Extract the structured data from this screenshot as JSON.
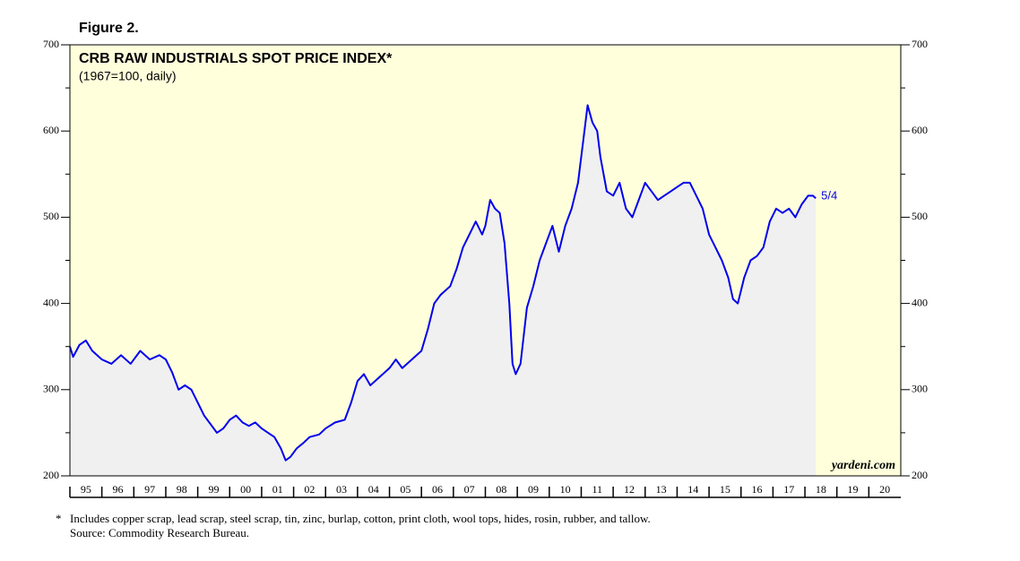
{
  "chart_data": {
    "type": "area-line",
    "figure_label": "Figure 2.",
    "title": "CRB RAW INDUSTRIALS SPOT PRICE INDEX*",
    "subtitle": "(1967=100, daily)",
    "end_label": "5/4",
    "watermark": "yardeni.com",
    "footnote": "Includes copper scrap, lead scrap, steel scrap, tin, zinc, burlap, cotton, print cloth, wool tops, hides, rosin, rubber, and tallow.",
    "footnote_marker": "*",
    "source": "Source: Commodity Research Bureau.",
    "color": "#0000ee",
    "area_color": "#f0f0f0",
    "plot_background": "#ffffdc",
    "x": [
      1995.0,
      1995.1,
      1995.3,
      1995.5,
      1995.7,
      1996.0,
      1996.3,
      1996.6,
      1996.9,
      1997.2,
      1997.5,
      1997.8,
      1998.0,
      1998.2,
      1998.4,
      1998.6,
      1998.8,
      1999.0,
      1999.2,
      1999.4,
      1999.6,
      1999.8,
      2000.0,
      2000.2,
      2000.4,
      2000.6,
      2000.8,
      2001.0,
      2001.2,
      2001.4,
      2001.6,
      2001.75,
      2001.9,
      2002.1,
      2002.3,
      2002.5,
      2002.8,
      2003.0,
      2003.3,
      2003.6,
      2003.8,
      2004.0,
      2004.2,
      2004.4,
      2004.7,
      2005.0,
      2005.2,
      2005.4,
      2005.7,
      2006.0,
      2006.2,
      2006.4,
      2006.6,
      2006.9,
      2007.1,
      2007.3,
      2007.5,
      2007.7,
      2007.9,
      2008.0,
      2008.15,
      2008.3,
      2008.45,
      2008.6,
      2008.75,
      2008.85,
      2008.95,
      2009.1,
      2009.3,
      2009.5,
      2009.7,
      2009.9,
      2010.1,
      2010.3,
      2010.5,
      2010.7,
      2010.9,
      2011.1,
      2011.2,
      2011.35,
      2011.5,
      2011.6,
      2011.8,
      2012.0,
      2012.2,
      2012.4,
      2012.6,
      2012.8,
      2013.0,
      2013.2,
      2013.4,
      2013.6,
      2013.8,
      2014.0,
      2014.2,
      2014.4,
      2014.6,
      2014.8,
      2015.0,
      2015.2,
      2015.4,
      2015.6,
      2015.75,
      2015.9,
      2016.1,
      2016.3,
      2016.5,
      2016.7,
      2016.9,
      2017.1,
      2017.3,
      2017.5,
      2017.7,
      2017.9,
      2018.1,
      2018.25,
      2018.34
    ],
    "values": [
      350,
      338,
      352,
      357,
      345,
      335,
      330,
      340,
      330,
      345,
      335,
      340,
      335,
      320,
      300,
      305,
      300,
      285,
      270,
      260,
      250,
      255,
      265,
      270,
      262,
      258,
      262,
      255,
      250,
      245,
      232,
      218,
      222,
      232,
      238,
      245,
      248,
      255,
      262,
      265,
      285,
      310,
      318,
      305,
      315,
      325,
      335,
      325,
      335,
      345,
      370,
      400,
      410,
      420,
      440,
      465,
      480,
      495,
      480,
      490,
      520,
      510,
      505,
      470,
      400,
      330,
      318,
      330,
      395,
      420,
      450,
      470,
      490,
      460,
      490,
      510,
      540,
      600,
      630,
      610,
      600,
      570,
      530,
      525,
      540,
      510,
      500,
      520,
      540,
      530,
      520,
      525,
      530,
      535,
      540,
      540,
      525,
      510,
      480,
      465,
      450,
      430,
      405,
      400,
      430,
      450,
      455,
      465,
      495,
      510,
      505,
      510,
      500,
      515,
      525,
      525,
      522
    ],
    "xlim": [
      1995,
      2021
    ],
    "xticks": [
      {
        "value": 1995,
        "label": "95"
      },
      {
        "value": 1996,
        "label": "96"
      },
      {
        "value": 1997,
        "label": "97"
      },
      {
        "value": 1998,
        "label": "98"
      },
      {
        "value": 1999,
        "label": "99"
      },
      {
        "value": 2000,
        "label": "00"
      },
      {
        "value": 2001,
        "label": "01"
      },
      {
        "value": 2002,
        "label": "02"
      },
      {
        "value": 2003,
        "label": "03"
      },
      {
        "value": 2004,
        "label": "04"
      },
      {
        "value": 2005,
        "label": "05"
      },
      {
        "value": 2006,
        "label": "06"
      },
      {
        "value": 2007,
        "label": "07"
      },
      {
        "value": 2008,
        "label": "08"
      },
      {
        "value": 2009,
        "label": "09"
      },
      {
        "value": 2010,
        "label": "10"
      },
      {
        "value": 2011,
        "label": "11"
      },
      {
        "value": 2012,
        "label": "12"
      },
      {
        "value": 2013,
        "label": "13"
      },
      {
        "value": 2014,
        "label": "14"
      },
      {
        "value": 2015,
        "label": "15"
      },
      {
        "value": 2016,
        "label": "16"
      },
      {
        "value": 2017,
        "label": "17"
      },
      {
        "value": 2018,
        "label": "18"
      },
      {
        "value": 2019,
        "label": "19"
      },
      {
        "value": 2020,
        "label": "20"
      }
    ],
    "ylim": [
      200,
      700
    ],
    "yticks": [
      200,
      300,
      400,
      500,
      600,
      700
    ],
    "yminorticks": [
      250,
      350,
      450,
      550,
      650
    ],
    "right_axis": true
  }
}
